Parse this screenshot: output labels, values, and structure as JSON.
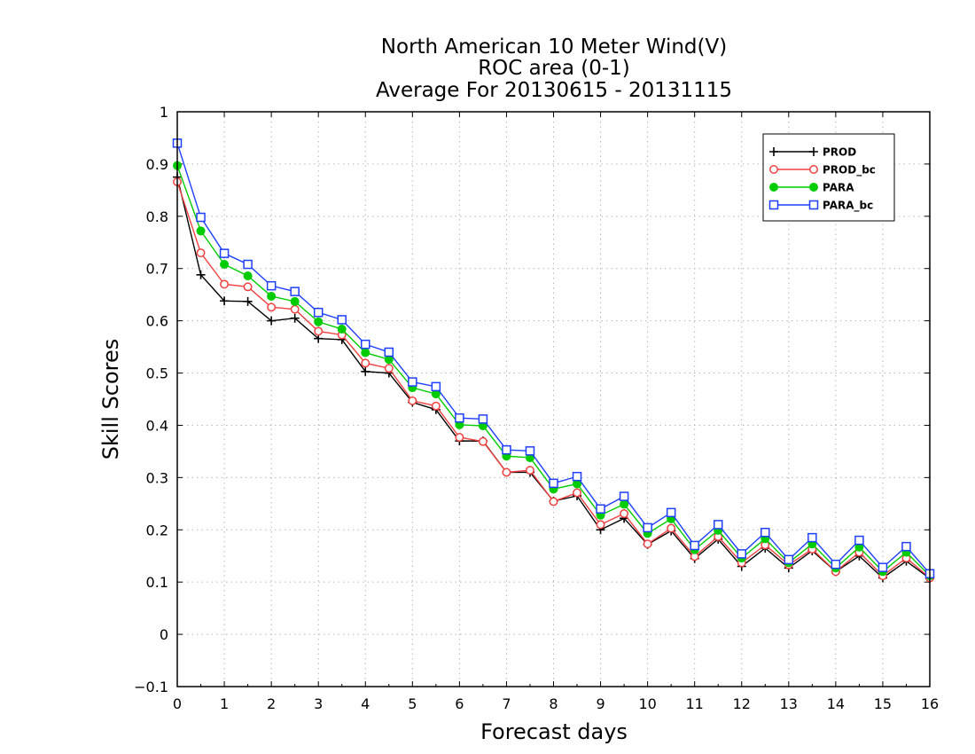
{
  "chart_data": {
    "type": "line",
    "title": [
      "North American 10 Meter Wind(V)",
      "ROC area (0-1)",
      "Average For 20130615 - 20131115"
    ],
    "xlabel": "Forecast days",
    "ylabel": "Skill Scores",
    "xlim": [
      0,
      16
    ],
    "ylim": [
      -0.1,
      1
    ],
    "xticks": [
      0,
      1,
      2,
      3,
      4,
      5,
      6,
      7,
      8,
      9,
      10,
      11,
      12,
      13,
      14,
      15,
      16
    ],
    "xtick_labels": [
      "0",
      "1",
      "2",
      "3",
      "4",
      "5",
      "6",
      "7",
      "8",
      "9",
      "10",
      "11",
      "12",
      "13",
      "14",
      "15",
      "16"
    ],
    "yticks": [
      -0.1,
      0,
      0.1,
      0.2,
      0.3,
      0.4,
      0.5,
      0.6,
      0.7,
      0.8,
      0.9,
      1
    ],
    "ytick_labels": [
      "−0.1",
      "0",
      "0.1",
      "0.2",
      "0.3",
      "0.4",
      "0.5",
      "0.6",
      "0.7",
      "0.8",
      "0.9",
      "1"
    ],
    "grid": true,
    "legend_position": "top-right",
    "x": [
      0,
      0.5,
      1,
      1.5,
      2,
      2.5,
      3,
      3.5,
      4,
      4.5,
      5,
      5.5,
      6,
      6.5,
      7,
      7.5,
      8,
      8.5,
      9,
      9.5,
      10,
      10.5,
      11,
      11.5,
      12,
      12.5,
      13,
      13.5,
      14,
      14.5,
      15,
      15.5,
      16
    ],
    "series": [
      {
        "name": "PROD",
        "color": "#000000",
        "marker": "plus",
        "values": [
          0.875,
          0.688,
          0.638,
          0.637,
          0.6,
          0.605,
          0.566,
          0.564,
          0.503,
          0.5,
          0.444,
          0.43,
          0.37,
          0.37,
          0.31,
          0.31,
          0.255,
          0.265,
          0.2,
          0.222,
          0.172,
          0.198,
          0.145,
          0.182,
          0.13,
          0.165,
          0.127,
          0.16,
          0.12,
          0.15,
          0.108,
          0.14,
          0.107
        ]
      },
      {
        "name": "PROD_bc",
        "color": "#f04040",
        "marker": "circle-open",
        "values": [
          0.866,
          0.73,
          0.67,
          0.665,
          0.626,
          0.622,
          0.58,
          0.573,
          0.519,
          0.509,
          0.447,
          0.437,
          0.377,
          0.369,
          0.31,
          0.314,
          0.254,
          0.271,
          0.21,
          0.231,
          0.173,
          0.203,
          0.149,
          0.187,
          0.137,
          0.171,
          0.133,
          0.163,
          0.12,
          0.157,
          0.112,
          0.146,
          0.108
        ]
      },
      {
        "name": "PARA",
        "color": "#00cc00",
        "marker": "circle-filled",
        "values": [
          0.897,
          0.772,
          0.708,
          0.686,
          0.647,
          0.637,
          0.598,
          0.584,
          0.539,
          0.526,
          0.472,
          0.46,
          0.401,
          0.399,
          0.341,
          0.338,
          0.278,
          0.288,
          0.228,
          0.249,
          0.193,
          0.221,
          0.162,
          0.199,
          0.146,
          0.183,
          0.137,
          0.173,
          0.127,
          0.167,
          0.12,
          0.157,
          0.112
        ]
      },
      {
        "name": "PARA_bc",
        "color": "#1f3fff",
        "marker": "square-open",
        "values": [
          0.94,
          0.798,
          0.729,
          0.708,
          0.667,
          0.656,
          0.616,
          0.602,
          0.555,
          0.54,
          0.483,
          0.474,
          0.414,
          0.412,
          0.353,
          0.351,
          0.289,
          0.302,
          0.24,
          0.264,
          0.204,
          0.233,
          0.17,
          0.21,
          0.154,
          0.195,
          0.143,
          0.185,
          0.134,
          0.18,
          0.128,
          0.168,
          0.116
        ]
      }
    ]
  }
}
